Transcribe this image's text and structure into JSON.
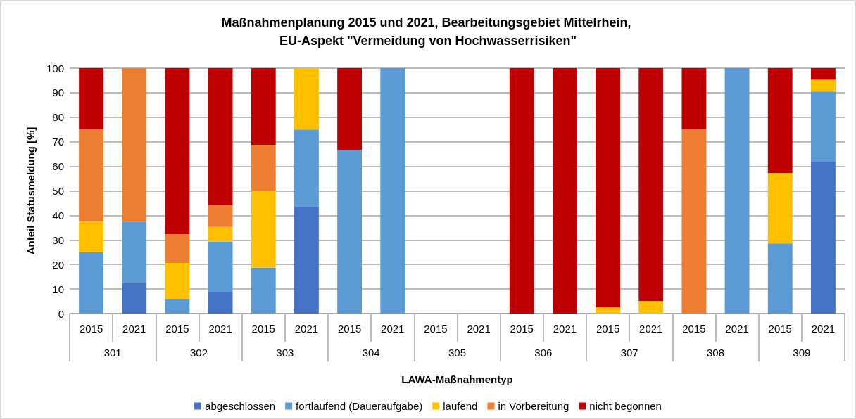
{
  "chart_data": {
    "type": "bar",
    "stacked": true,
    "title": "Maßnahmenplanung 2015 und 2021, Bearbeitungsgebiet Mittelrhein, EU-Aspekt \"Vermeidung von Hochwasserrisiken\"",
    "xlabel": "LAWA-Maßnahmentyp",
    "ylabel": "Anteil Statusmeldung [%]",
    "categories": [
      "2015",
      "2021",
      "2015",
      "2021",
      "2015",
      "2021",
      "2015",
      "2021",
      "2015",
      "2021",
      "2015",
      "2021",
      "2015",
      "2021",
      "2015",
      "2021",
      "2015",
      "2021"
    ],
    "annotations": [
      {
        "text": "301"
      },
      {
        "text": "302"
      },
      {
        "text": "303"
      },
      {
        "text": "304"
      },
      {
        "text": "305"
      },
      {
        "text": "306"
      },
      {
        "text": "307"
      },
      {
        "text": "308"
      },
      {
        "text": "309"
      }
    ],
    "series": [
      {
        "name": "abgeschlossen",
        "color": "#4472c4",
        "values": [
          null,
          12.5,
          null,
          8.8,
          null,
          43.8,
          null,
          null,
          null,
          null,
          null,
          null,
          null,
          null,
          null,
          null,
          null,
          61.9
        ]
      },
      {
        "name": "fortlaufend (Daueraufgabe)",
        "color": "#5b9bd5",
        "values": [
          25,
          25,
          5.9,
          20.6,
          18.8,
          31.2,
          66.7,
          100,
          null,
          null,
          null,
          null,
          null,
          null,
          null,
          100,
          28.6,
          28.6
        ]
      },
      {
        "name": "laufend",
        "color": "#ffc000",
        "values": [
          12.5,
          null,
          14.7,
          5.9,
          31.2,
          25,
          null,
          null,
          null,
          null,
          null,
          null,
          2.5,
          5.1,
          null,
          null,
          28.6,
          4.8
        ]
      },
      {
        "name": "in Vorbereitung",
        "color": "#ed7d31",
        "values": [
          37.5,
          62.5,
          11.8,
          8.8,
          18.8,
          null,
          null,
          null,
          null,
          null,
          null,
          null,
          null,
          null,
          75,
          null,
          null,
          null
        ]
      },
      {
        "name": "nicht begonnen",
        "color": "#c00000",
        "values": [
          25,
          null,
          67.6,
          55.9,
          31.2,
          null,
          33.3,
          null,
          null,
          null,
          100,
          100,
          97.5,
          94.9,
          25,
          null,
          42.8,
          4.7
        ]
      }
    ],
    "ylim": [
      0,
      100
    ],
    "yticks": [
      0,
      10,
      20,
      30,
      40,
      50,
      60,
      70,
      80,
      90,
      100
    ],
    "grid": "y",
    "legend": "bottom"
  }
}
